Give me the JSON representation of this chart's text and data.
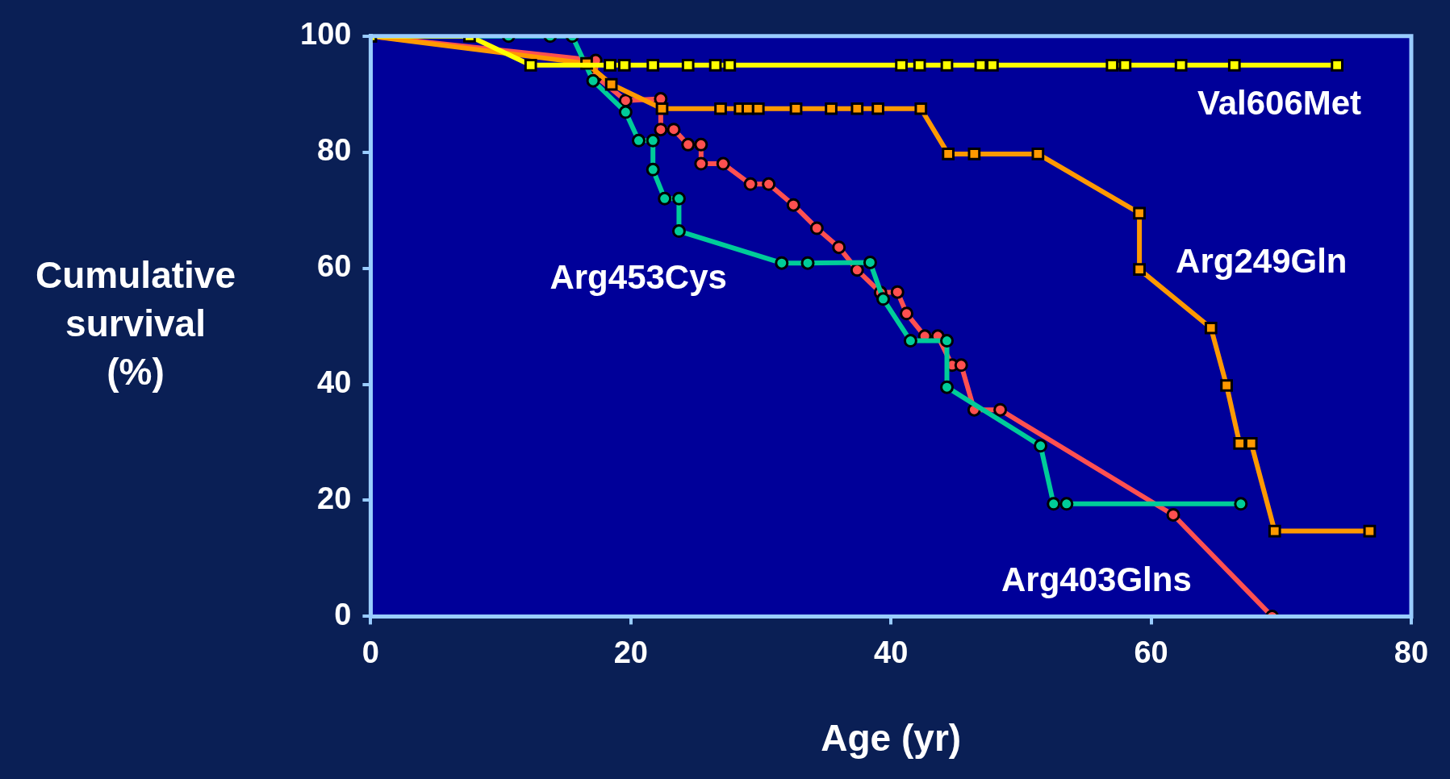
{
  "chart_data": {
    "type": "line",
    "xlabel": "Age (yr)",
    "ylabel": "Cumulative survival (%)",
    "xlim": [
      0,
      80
    ],
    "xticks": [
      0,
      20,
      40,
      60,
      80
    ],
    "ylim": [
      0,
      100
    ],
    "yticks": [
      0,
      20,
      40,
      60,
      80,
      100
    ],
    "grid": false,
    "legend": false,
    "series": [
      {
        "name": "Val606Met",
        "color": "#ffff00",
        "marker": "square",
        "x": [
          0,
          7.6,
          12.3,
          18.4,
          19.5,
          21.7,
          24.4,
          26.5,
          27.6,
          40.8,
          42.2,
          44.3,
          46.9,
          47.8,
          57,
          58,
          62.3,
          66.4,
          74.3
        ],
        "values": [
          100,
          100,
          95,
          95,
          95,
          95,
          95,
          95,
          95,
          95,
          95,
          95,
          95,
          95,
          95,
          95,
          95,
          95,
          95
        ]
      },
      {
        "name": "Arg249Gln",
        "color": "#ff9900",
        "marker": "square",
        "x": [
          0,
          16.6,
          18.5,
          22.4,
          26.9,
          28.4,
          29,
          29.8,
          32.7,
          35.4,
          37.4,
          39,
          42.3,
          44.4,
          46.4,
          51.3,
          59.1,
          59.1,
          64.6,
          65.8,
          66.8,
          67.7,
          69.5,
          76.8
        ],
        "values": [
          100,
          95.3,
          91.7,
          87.5,
          87.5,
          87.5,
          87.5,
          87.5,
          87.5,
          87.5,
          87.5,
          87.5,
          87.5,
          79.7,
          79.7,
          79.7,
          69.5,
          59.8,
          49.7,
          39.8,
          29.8,
          29.8,
          14.7,
          14.7
        ]
      },
      {
        "name": "Arg453Cys",
        "color": "#00cc99",
        "marker": "circle",
        "x": [
          0,
          10.6,
          13.8,
          15.5,
          17.1,
          19.6,
          20.6,
          21.7,
          21.7,
          22.6,
          23.7,
          23.7,
          31.6,
          33.6,
          38.4,
          39.4,
          41.5,
          44.3,
          44.3,
          51.5,
          52.5,
          53.5,
          66.9
        ],
        "values": [
          100,
          100,
          100,
          100,
          92.3,
          86.9,
          82,
          82,
          77,
          72,
          72,
          66.4,
          60.9,
          60.9,
          61,
          54.7,
          47.5,
          47.5,
          39.5,
          29.4,
          19.4,
          19.4,
          19.4
        ]
      },
      {
        "name": "Arg403Glns",
        "color": "#ff5050",
        "marker": "circle",
        "x": [
          0,
          17.3,
          17.3,
          19.6,
          22.3,
          22.3,
          23.3,
          24.4,
          25.4,
          25.4,
          27.1,
          29.2,
          30.6,
          32.5,
          34.3,
          36,
          37.4,
          39.2,
          40.5,
          41.2,
          42.6,
          43.6,
          44.7,
          45.4,
          46.4,
          48.4,
          61.7,
          69.3
        ],
        "values": [
          100,
          95.8,
          93.1,
          88.9,
          89.2,
          83.9,
          83.9,
          81.3,
          81.3,
          78,
          78,
          74.5,
          74.5,
          70.9,
          66.9,
          63.6,
          59.7,
          55.8,
          55.9,
          52.2,
          48.3,
          48.3,
          43.3,
          43.3,
          35.6,
          35.6,
          17.5,
          0
        ]
      }
    ]
  }
}
